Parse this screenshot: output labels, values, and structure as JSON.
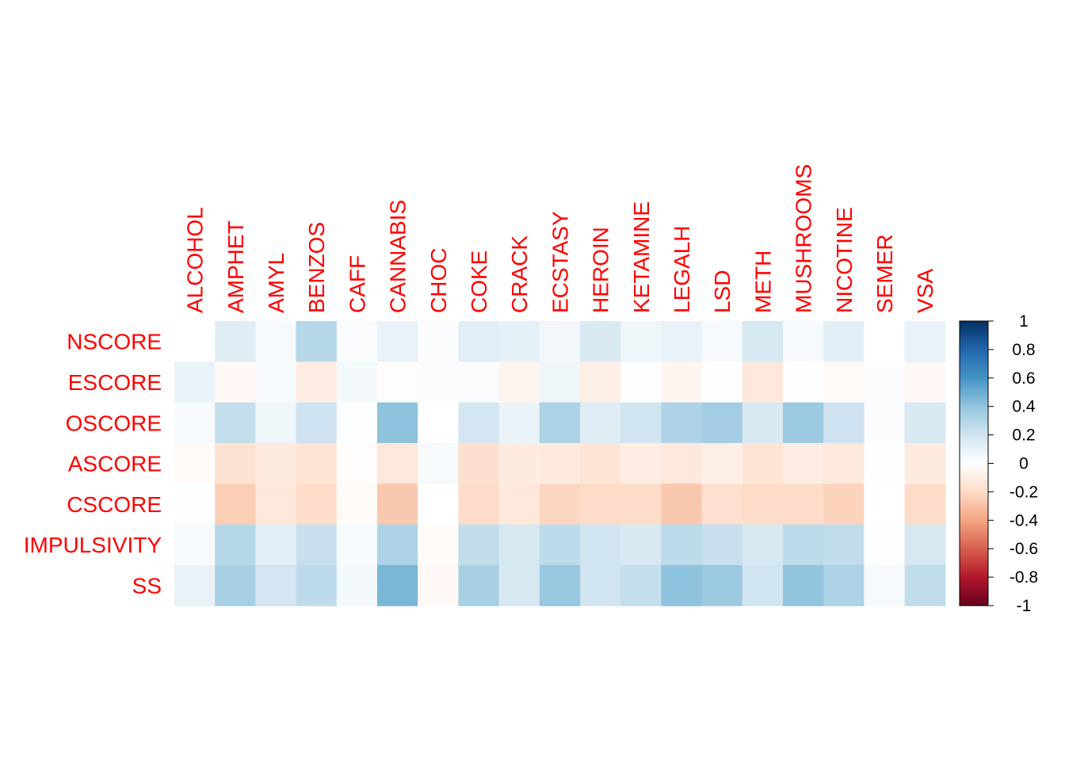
{
  "chart_data": {
    "type": "heatmap",
    "title": "",
    "rows": [
      "NSCORE",
      "ESCORE",
      "OSCORE",
      "ASCORE",
      "CSCORE",
      "IMPULSIVITY",
      "SS"
    ],
    "columns": [
      "ALCOHOL",
      "AMPHET",
      "AMYL",
      "BENZOS",
      "CAFF",
      "CANNABIS",
      "CHOC",
      "COKE",
      "CRACK",
      "ECSTASY",
      "HEROIN",
      "KETAMINE",
      "LEGALH",
      "LSD",
      "METH",
      "MUSHROOMS",
      "NICOTINE",
      "SEMER",
      "VSA"
    ],
    "values": [
      [
        0.0,
        0.14,
        0.04,
        0.29,
        0.02,
        0.1,
        0.02,
        0.13,
        0.11,
        0.06,
        0.16,
        0.07,
        0.1,
        0.04,
        0.18,
        0.04,
        0.12,
        0.0,
        0.1
      ],
      [
        0.09,
        -0.04,
        0.04,
        -0.1,
        0.05,
        -0.01,
        0.02,
        0.02,
        -0.06,
        0.07,
        -0.09,
        0.01,
        -0.05,
        0.01,
        -0.13,
        0.01,
        -0.03,
        0.02,
        -0.04
      ],
      [
        0.04,
        0.24,
        0.07,
        0.21,
        0.01,
        0.41,
        0.0,
        0.19,
        0.09,
        0.32,
        0.14,
        0.2,
        0.31,
        0.35,
        0.17,
        0.37,
        0.21,
        0.02,
        0.17
      ],
      [
        -0.03,
        -0.16,
        -0.11,
        -0.15,
        -0.01,
        -0.13,
        0.04,
        -0.18,
        -0.11,
        -0.12,
        -0.15,
        -0.1,
        -0.13,
        -0.09,
        -0.15,
        -0.1,
        -0.12,
        0.01,
        -0.11
      ],
      [
        0.01,
        -0.25,
        -0.13,
        -0.19,
        -0.02,
        -0.27,
        0.0,
        -0.19,
        -0.13,
        -0.22,
        -0.19,
        -0.19,
        -0.27,
        -0.17,
        -0.19,
        -0.19,
        -0.23,
        0.0,
        -0.19
      ],
      [
        0.04,
        0.29,
        0.12,
        0.23,
        0.04,
        0.31,
        -0.02,
        0.25,
        0.18,
        0.26,
        0.2,
        0.17,
        0.26,
        0.23,
        0.18,
        0.26,
        0.25,
        0.01,
        0.18
      ],
      [
        0.1,
        0.33,
        0.19,
        0.26,
        0.05,
        0.46,
        -0.04,
        0.33,
        0.18,
        0.38,
        0.2,
        0.24,
        0.41,
        0.37,
        0.2,
        0.4,
        0.31,
        0.04,
        0.25
      ]
    ],
    "colorbar": {
      "ticks": [
        "1",
        "0.8",
        "0.6",
        "0.4",
        "0.2",
        "0",
        "-0.2",
        "-0.4",
        "-0.6",
        "-0.8",
        "-1"
      ],
      "range": [
        -1,
        1
      ],
      "colors_low_to_high": [
        "#67001F",
        "#B2182B",
        "#D6604D",
        "#F4A582",
        "#FDDBC7",
        "#FFFFFF",
        "#D1E5F0",
        "#92C5DE",
        "#4393C3",
        "#2166AC",
        "#053061"
      ]
    },
    "label_color": "#FF0000",
    "grid": false,
    "legend_position": "right"
  }
}
